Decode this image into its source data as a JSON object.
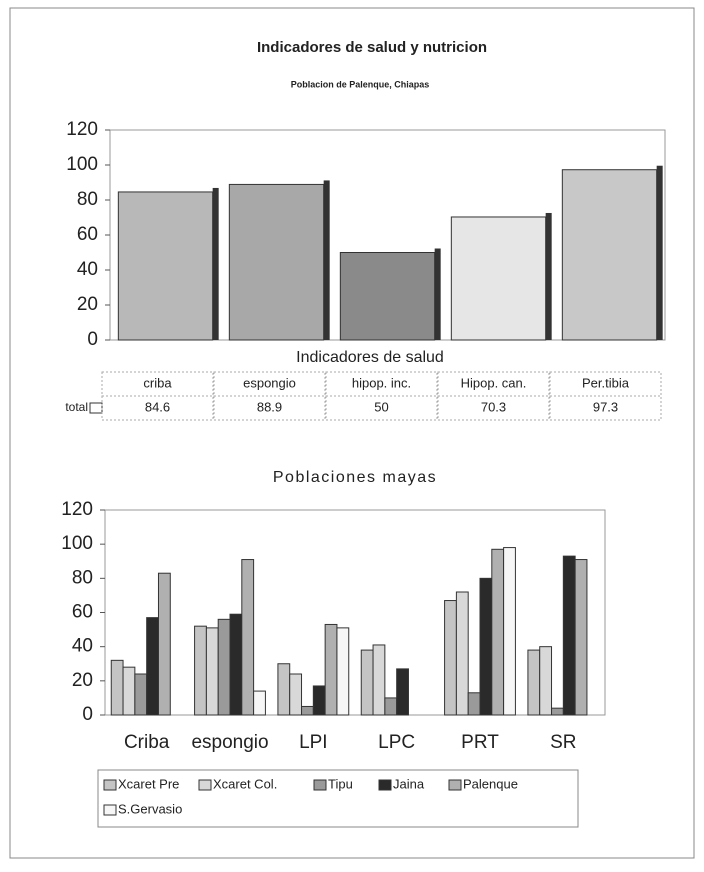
{
  "chart_data": [
    {
      "type": "bar",
      "title": "Indicadores de salud y nutricion",
      "subtitle": "Poblacion de Palenque, Chiapas",
      "x_label": "Indicadores de salud",
      "row_label": "total",
      "categories": [
        "criba",
        "espongio",
        "hipop. inc.",
        "Hipop. can.",
        "Per.tibia"
      ],
      "values": [
        84.6,
        88.9,
        50,
        70.3,
        97.3
      ],
      "colors": [
        "#b8b8b8",
        "#a8a8a8",
        "#8a8a8a",
        "#e6e6e6",
        "#c8c8c8"
      ],
      "ylim": [
        0,
        120
      ],
      "yticks": [
        0,
        20,
        40,
        60,
        80,
        100,
        120
      ]
    },
    {
      "type": "grouped-bar",
      "title": "Poblaciones mayas",
      "categories": [
        "Criba",
        "espongio",
        "LPI",
        "LPC",
        "PRT",
        "SR"
      ],
      "series": [
        {
          "name": "Xcaret Pre",
          "color": "#c4c4c4",
          "values": [
            32,
            52,
            30,
            38,
            67,
            38
          ]
        },
        {
          "name": "Xcaret Col.",
          "color": "#d8d8d8",
          "values": [
            28,
            51,
            24,
            41,
            72,
            40
          ]
        },
        {
          "name": "Tipu",
          "color": "#9a9a9a",
          "values": [
            24,
            56,
            5,
            10,
            13,
            4
          ]
        },
        {
          "name": "Jaina",
          "color": "#2a2a2a",
          "values": [
            57,
            59,
            17,
            27,
            80,
            93
          ]
        },
        {
          "name": "Palenque",
          "color": "#b0b0b0",
          "values": [
            83,
            91,
            53,
            null,
            97,
            91
          ]
        },
        {
          "name": "S.Gervasio",
          "color": "#f6f6f6",
          "values": [
            null,
            14,
            51,
            null,
            98,
            null
          ]
        }
      ],
      "ylim": [
        0,
        120
      ],
      "yticks": [
        0,
        20,
        40,
        60,
        80,
        100,
        120
      ]
    }
  ]
}
